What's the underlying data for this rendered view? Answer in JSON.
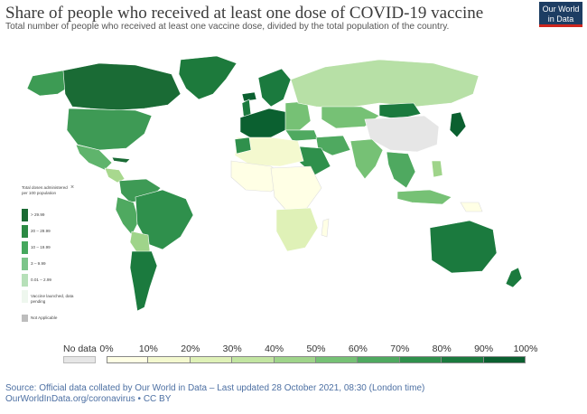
{
  "header": {
    "title": "Share of people who received at least one dose of COVID-19 vaccine",
    "subtitle": "Total number of people who received at least one vaccine dose, divided by the total population of the country.",
    "logo_line1": "Our World",
    "logo_line2": "in Data"
  },
  "mini_legend": {
    "title": "Total doses administered per 100 population",
    "close": "×",
    "items": [
      {
        "label": "> 29.99",
        "color": "#1b6b34"
      },
      {
        "label": "20 – 29.99",
        "color": "#2b8a43"
      },
      {
        "label": "10 – 19.99",
        "color": "#45a85d"
      },
      {
        "label": "3 – 9.99",
        "color": "#7cc58a"
      },
      {
        "label": "0.01 – 2.99",
        "color": "#b7e0b9"
      },
      {
        "label": "Vaccine launched, data pending",
        "color": "#eef7ee"
      },
      {
        "label": "Not Applicable",
        "color": "#bdbdbd"
      }
    ]
  },
  "scale": {
    "no_data_label": "No data",
    "no_data_color": "#e6e6e6",
    "ticks": [
      "0%",
      "10%",
      "20%",
      "30%",
      "40%",
      "50%",
      "60%",
      "70%",
      "80%",
      "90%",
      "100%"
    ],
    "colors": [
      "#ffffe5",
      "#f4f9cf",
      "#dff1b7",
      "#c2e5a1",
      "#9fd48a",
      "#76c175",
      "#4fa960",
      "#2f904c",
      "#1b7a3e",
      "#0b6030"
    ]
  },
  "footer": {
    "line1": "Source: Official data collated by Our World in Data – Last updated 28 October 2021, 08:30 (London time)",
    "line2": "OurWorldInData.org/coronavirus • CC BY"
  }
}
